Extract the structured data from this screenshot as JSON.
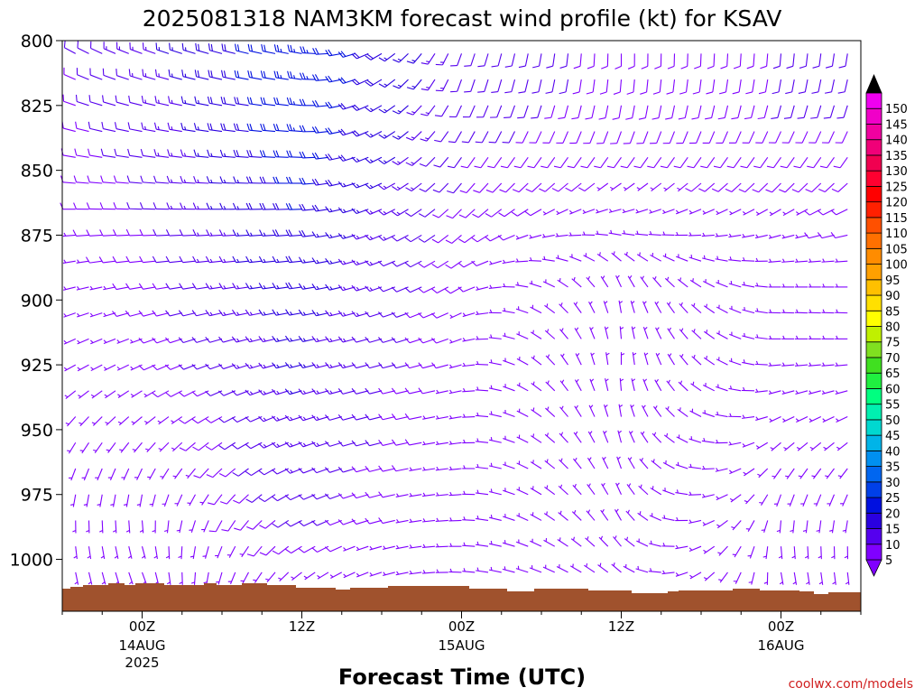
{
  "chart_data": {
    "type": "wind-barb-time-height",
    "title": "2025081318 NAM3KM forecast wind profile (kt) for KSAV",
    "xlabel": "Forecast Time (UTC)",
    "credit": "coolwx.com/models",
    "y_axis": {
      "quantity": "pressure (hPa)",
      "range": [
        1020,
        800
      ],
      "ticks": [
        800,
        825,
        850,
        875,
        900,
        925,
        950,
        975,
        1000
      ],
      "tick_labels": [
        "800",
        "825",
        "850",
        "875",
        "900",
        "925",
        "950",
        "975",
        "1000"
      ]
    },
    "x_axis": {
      "start": "2025-08-13 18Z",
      "end": "2025-08-16 06Z",
      "ticks": [
        {
          "time": "2025-08-14 00Z",
          "label": "00Z",
          "date": "14AUG",
          "year": "2025"
        },
        {
          "time": "2025-08-14 12Z",
          "label": "12Z",
          "date": "",
          "year": ""
        },
        {
          "time": "2025-08-15 00Z",
          "label": "00Z",
          "date": "15AUG",
          "year": ""
        },
        {
          "time": "2025-08-15 12Z",
          "label": "12Z",
          "date": "",
          "year": ""
        },
        {
          "time": "2025-08-16 00Z",
          "label": "00Z",
          "date": "16AUG",
          "year": ""
        }
      ]
    },
    "colorbar": {
      "units": "kt",
      "levels": [
        5,
        10,
        15,
        20,
        25,
        30,
        35,
        40,
        45,
        50,
        55,
        60,
        65,
        70,
        75,
        80,
        85,
        90,
        95,
        100,
        105,
        110,
        115,
        120,
        125,
        130,
        135,
        140,
        145,
        150
      ],
      "colors": [
        "#8000ff",
        "#5500ee",
        "#2a00e0",
        "#0010e0",
        "#0040e8",
        "#0066f0",
        "#0090f0",
        "#00b4e8",
        "#00d8d0",
        "#00f0b0",
        "#00ff80",
        "#20f040",
        "#40e020",
        "#80e020",
        "#c0f000",
        "#ffff00",
        "#ffe000",
        "#ffc000",
        "#ffa000",
        "#ff8c00",
        "#ff7000",
        "#ff5000",
        "#ff2000",
        "#ff0000",
        "#ff0030",
        "#f00050",
        "#f00078",
        "#f000a0",
        "#f000c8",
        "#f000f0"
      ],
      "top_arrow_color": "#000000",
      "bottom_arrow_color": "#8000ff"
    },
    "terrain_color": "#a0522d",
    "pressure_levels": [
      805,
      815,
      825,
      835,
      845,
      855,
      865,
      875,
      885,
      895,
      905,
      915,
      925,
      935,
      945,
      955,
      965,
      975,
      985,
      995,
      1005,
      1015
    ],
    "wind_profile_kt_deg": [
      {
        "valid": "2025-08-13 18Z",
        "speed": [
          10,
          9,
          9,
          8,
          8,
          7,
          7,
          7,
          6,
          6,
          6,
          6,
          5,
          5,
          5,
          4,
          4,
          4,
          3,
          3,
          3,
          2
        ],
        "dir": [
          300,
          295,
          290,
          285,
          280,
          275,
          270,
          265,
          260,
          255,
          250,
          245,
          240,
          230,
          220,
          210,
          200,
          190,
          180,
          175,
          170,
          170
        ]
      },
      {
        "valid": "2025-08-14 00Z",
        "speed": [
          14,
          13,
          12,
          12,
          11,
          10,
          10,
          9,
          9,
          8,
          8,
          7,
          7,
          6,
          5,
          5,
          4,
          4,
          4,
          3,
          3,
          3
        ],
        "dir": [
          290,
          287,
          284,
          281,
          278,
          275,
          272,
          268,
          264,
          260,
          255,
          250,
          245,
          238,
          230,
          220,
          205,
          190,
          175,
          165,
          160,
          155
        ]
      },
      {
        "valid": "2025-08-14 12Z",
        "speed": [
          24,
          24,
          23,
          23,
          22,
          21,
          20,
          19,
          18,
          18,
          17,
          16,
          16,
          15,
          14,
          14,
          13,
          12,
          11,
          9,
          7,
          5
        ],
        "dir": [
          280,
          278,
          276,
          274,
          272,
          270,
          268,
          266,
          264,
          262,
          260,
          258,
          256,
          254,
          252,
          250,
          248,
          245,
          242,
          238,
          232,
          225
        ]
      },
      {
        "valid": "2025-08-15 00Z",
        "speed": [
          12,
          12,
          11,
          11,
          10,
          10,
          9,
          9,
          8,
          8,
          7,
          7,
          7,
          6,
          6,
          6,
          5,
          5,
          5,
          4,
          4,
          4
        ],
        "dir": [
          200,
          200,
          205,
          210,
          215,
          220,
          225,
          230,
          235,
          240,
          245,
          250,
          255,
          258,
          260,
          262,
          264,
          266,
          268,
          270,
          272,
          272
        ]
      },
      {
        "valid": "2025-08-15 12Z",
        "speed": [
          9,
          9,
          9,
          8,
          8,
          7,
          6,
          5,
          5,
          4,
          4,
          4,
          4,
          4,
          4,
          4,
          4,
          4,
          4,
          3,
          3,
          3
        ],
        "dir": [
          180,
          185,
          190,
          200,
          215,
          235,
          255,
          280,
          310,
          335,
          350,
          355,
          0,
          355,
          350,
          345,
          340,
          335,
          330,
          320,
          310,
          300
        ]
      },
      {
        "valid": "2025-08-16 00Z",
        "speed": [
          10,
          10,
          10,
          9,
          8,
          8,
          7,
          7,
          7,
          6,
          6,
          6,
          5,
          5,
          5,
          5,
          4,
          4,
          4,
          3,
          3,
          3
        ],
        "dir": [
          185,
          190,
          195,
          205,
          215,
          225,
          240,
          255,
          265,
          270,
          272,
          270,
          265,
          255,
          245,
          230,
          215,
          200,
          185,
          175,
          170,
          165
        ]
      },
      {
        "valid": "2025-08-16 06Z",
        "speed": [
          11,
          11,
          10,
          10,
          9,
          9,
          8,
          8,
          7,
          7,
          7,
          6,
          6,
          6,
          5,
          5,
          5,
          4,
          4,
          4,
          3,
          3
        ],
        "dir": [
          190,
          193,
          198,
          205,
          215,
          228,
          245,
          258,
          266,
          270,
          272,
          270,
          265,
          255,
          245,
          232,
          218,
          204,
          190,
          180,
          174,
          170
        ]
      }
    ]
  }
}
